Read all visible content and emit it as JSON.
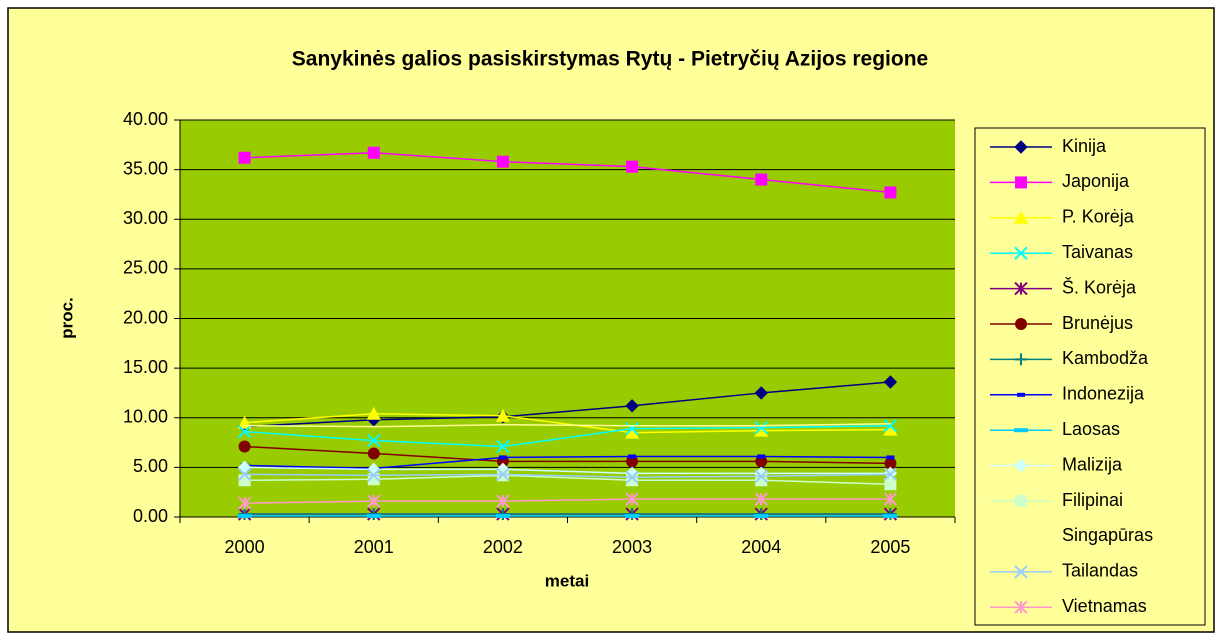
{
  "chart_data": {
    "type": "line",
    "title": "Sanykinės galios pasiskirstymas Rytų - Pietryčių Azijos regione",
    "x_label": "metai",
    "y_label": "proc.",
    "categories": [
      "2000",
      "2001",
      "2002",
      "2003",
      "2004",
      "2005"
    ],
    "ylim": [
      0,
      40
    ],
    "yticks": [
      {
        "value": 0,
        "label": "0.00"
      },
      {
        "value": 5,
        "label": "5.00"
      },
      {
        "value": 10,
        "label": "10.00"
      },
      {
        "value": 15,
        "label": "15.00"
      },
      {
        "value": 20,
        "label": "20.00"
      },
      {
        "value": 25,
        "label": "25.00"
      },
      {
        "value": 30,
        "label": "30.00"
      },
      {
        "value": 35,
        "label": "35.00"
      },
      {
        "value": 40,
        "label": "40.00"
      }
    ],
    "grid": true,
    "legend": "right",
    "series": [
      {
        "name": "Kinija",
        "color": "#000080",
        "marker": "diamond",
        "values": [
          9.1,
          9.8,
          10.1,
          11.2,
          12.5,
          13.6
        ]
      },
      {
        "name": "Japonija",
        "color": "#FF00FF",
        "marker": "square",
        "values": [
          36.2,
          36.7,
          35.8,
          35.3,
          34.0,
          32.7
        ]
      },
      {
        "name": "P. Korėja",
        "color": "#FFFF00",
        "marker": "triangle",
        "values": [
          9.5,
          10.4,
          10.2,
          8.5,
          8.7,
          8.8
        ]
      },
      {
        "name": "Taivanas",
        "color": "#00FFFF",
        "marker": "x",
        "values": [
          8.6,
          7.7,
          7.1,
          8.9,
          9.0,
          9.2
        ]
      },
      {
        "name": "Š. Korėja",
        "color": "#800080",
        "marker": "star",
        "values": [
          0.3,
          0.3,
          0.3,
          0.3,
          0.3,
          0.3
        ]
      },
      {
        "name": "Brunėjus",
        "color": "#800000",
        "marker": "circle",
        "values": [
          7.1,
          6.4,
          5.6,
          5.6,
          5.6,
          5.4
        ]
      },
      {
        "name": "Kambodža",
        "color": "#008080",
        "marker": "plus",
        "values": [
          0.3,
          0.3,
          0.3,
          0.3,
          0.3,
          0.3
        ]
      },
      {
        "name": "Indonezija",
        "color": "#0000FF",
        "marker": "dash",
        "values": [
          5.2,
          4.9,
          6.0,
          6.1,
          6.1,
          6.0
        ]
      },
      {
        "name": "Laosas",
        "color": "#00CCFF",
        "marker": "bar",
        "values": [
          0.1,
          0.1,
          0.1,
          0.1,
          0.1,
          0.1
        ]
      },
      {
        "name": "Malizija",
        "color": "#CCFFFF",
        "marker": "diamond",
        "values": [
          5.0,
          4.8,
          4.8,
          4.4,
          4.4,
          4.4
        ]
      },
      {
        "name": "Filipinai",
        "color": "#CCFFCC",
        "marker": "square",
        "values": [
          3.7,
          3.8,
          4.2,
          3.7,
          3.7,
          3.3
        ]
      },
      {
        "name": "Singapūras",
        "color": "#FFFF99",
        "marker": "none",
        "values": [
          9.2,
          9.1,
          9.3,
          9.2,
          9.2,
          9.4
        ]
      },
      {
        "name": "Tailandas",
        "color": "#99CCFF",
        "marker": "x",
        "values": [
          4.3,
          4.2,
          4.3,
          4.0,
          4.1,
          4.3
        ]
      },
      {
        "name": "Vietnamas",
        "color": "#FF99CC",
        "marker": "star",
        "values": [
          1.4,
          1.6,
          1.6,
          1.8,
          1.8,
          1.8
        ]
      }
    ]
  }
}
